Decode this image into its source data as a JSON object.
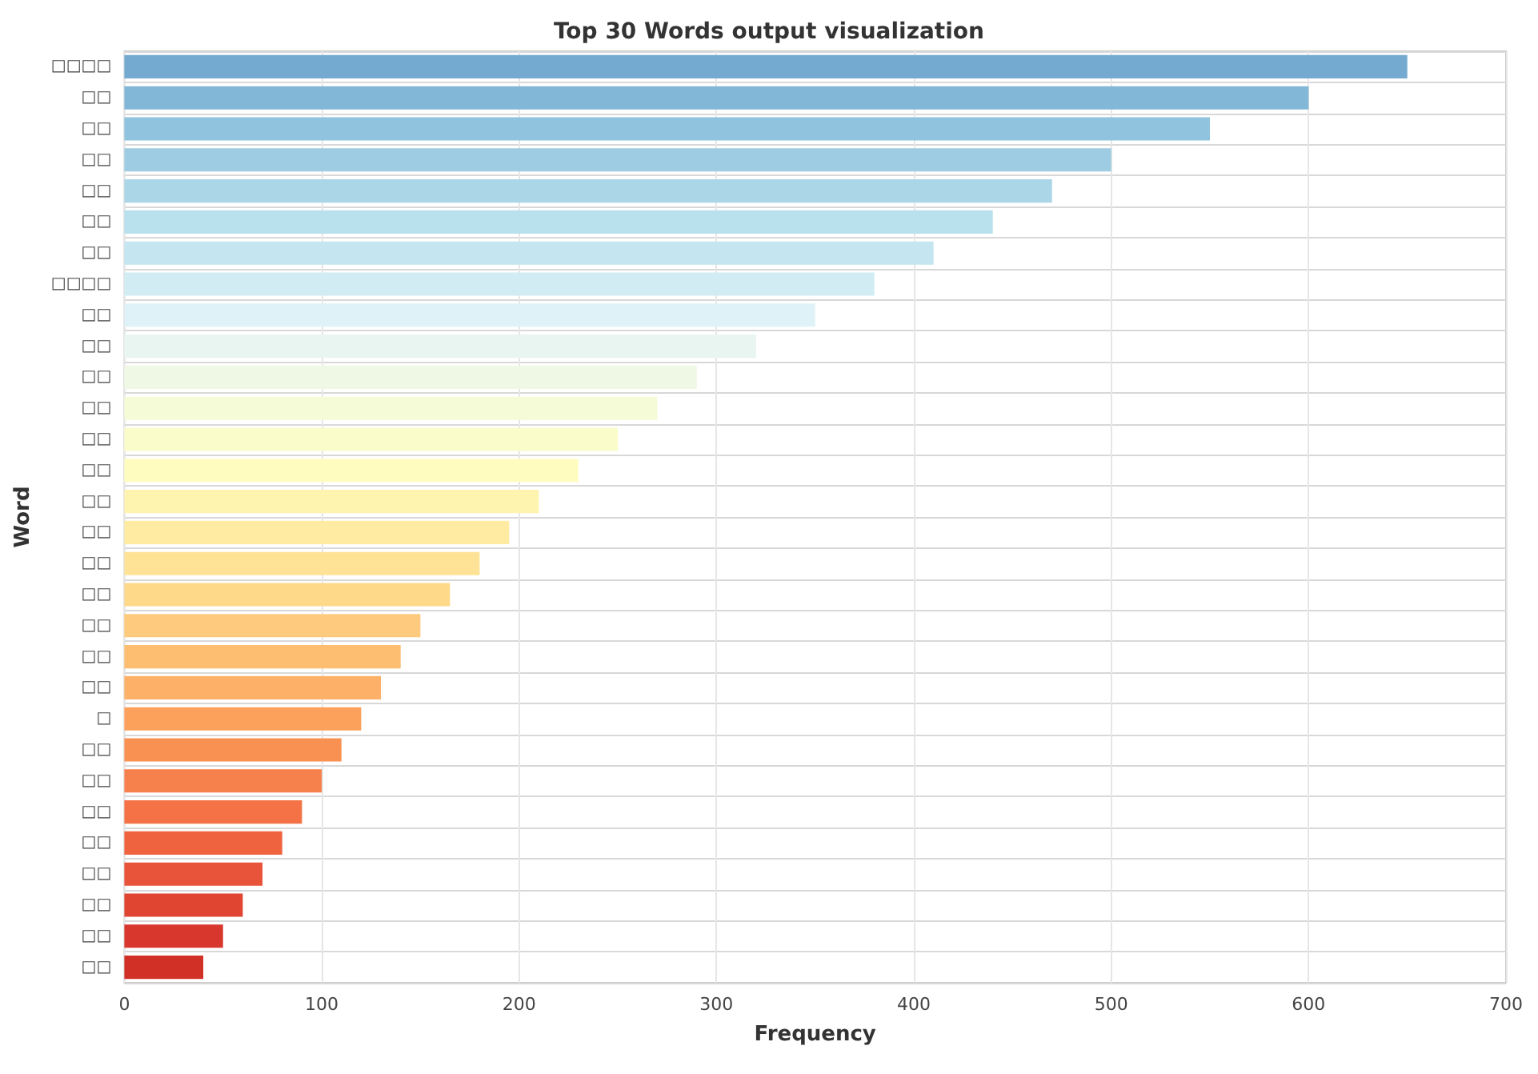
{
  "chart_data": {
    "type": "bar",
    "orientation": "horizontal",
    "title": "Top 30 Words output visualization",
    "xlabel": "Frequency",
    "ylabel": "Word",
    "categories": [
      "□□□□",
      "□□",
      "□□",
      "□□",
      "□□",
      "□□",
      "□□",
      "□□□□",
      "□□",
      "□□",
      "□□",
      "□□",
      "□□",
      "□□",
      "□□",
      "□□",
      "□□",
      "□□",
      "□□",
      "□□",
      "□□",
      "□",
      "□□",
      "□□",
      "□□",
      "□□",
      "□□",
      "□□",
      "□□",
      "□□"
    ],
    "values": [
      650,
      600,
      550,
      500,
      470,
      440,
      410,
      380,
      350,
      320,
      290,
      270,
      250,
      230,
      210,
      195,
      180,
      165,
      150,
      140,
      130,
      120,
      110,
      100,
      90,
      80,
      70,
      60,
      50,
      40
    ],
    "colors": [
      "#74aad0",
      "#82b7d8",
      "#90c3de",
      "#9ecde3",
      "#abd6e8",
      "#b9e0ed",
      "#c5e6f0",
      "#d2ecf4",
      "#dff2f7",
      "#e8f5f0",
      "#eff8e4",
      "#f5fbd6",
      "#fafcc9",
      "#fffcbf",
      "#fff3b0",
      "#ffeba2",
      "#fee396",
      "#fed98a",
      "#fecb7e",
      "#fdbe72",
      "#fdb067",
      "#fca15c",
      "#f99153",
      "#f6814c",
      "#f47245",
      "#ef633f",
      "#e85439",
      "#e04532",
      "#d7372c",
      "#d03026"
    ],
    "xlim": [
      0,
      700
    ],
    "xticks": [
      0,
      100,
      200,
      300,
      400,
      500,
      600,
      700
    ],
    "grid": true
  }
}
